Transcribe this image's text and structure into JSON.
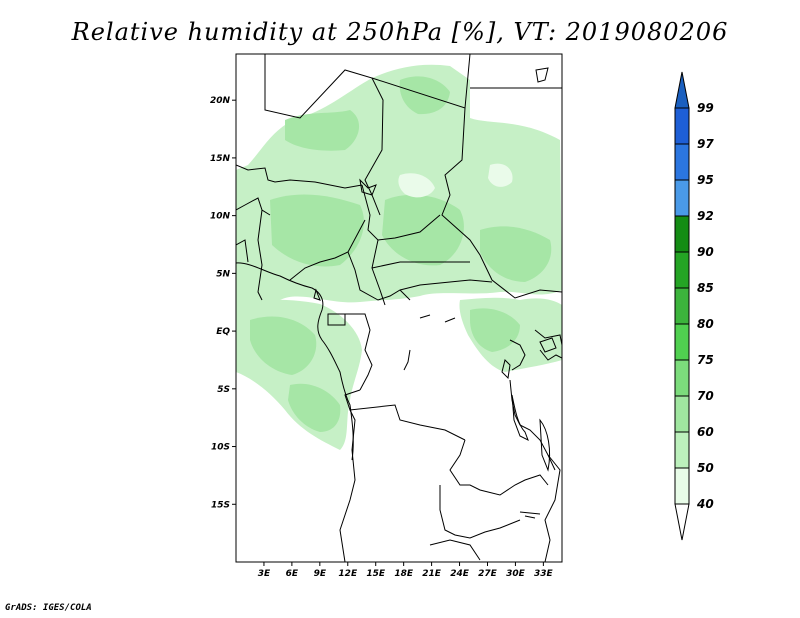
{
  "title": "Relative humidity at 250hPa [%], VT: 2019080206",
  "credit": "GrADS: IGES/COLA",
  "map": {
    "lat_labels": [
      "20N",
      "15N",
      "10N",
      "5N",
      "EQ",
      "5S",
      "10S",
      "15S"
    ],
    "lon_labels": [
      "3E",
      "6E",
      "9E",
      "12E",
      "15E",
      "18E",
      "21E",
      "24E",
      "27E",
      "30E",
      "33E"
    ],
    "lat_range": [
      -20,
      24
    ],
    "lon_range": [
      0,
      35
    ]
  },
  "colorbar": {
    "levels": [
      "99",
      "97",
      "95",
      "92",
      "90",
      "85",
      "80",
      "75",
      "70",
      "60",
      "50",
      "40"
    ],
    "colors": [
      "#1e5fd6",
      "#2b76e0",
      "#4a9ae8",
      "#148c14",
      "#24a424",
      "#3cb43c",
      "#50d050",
      "#7cdc7c",
      "#a0e6a0",
      "#bcf0bc",
      "#d2f6d2",
      "#e8fce8"
    ],
    "bottom_color": "#ffffff",
    "top_color": "#1a5fbf"
  }
}
